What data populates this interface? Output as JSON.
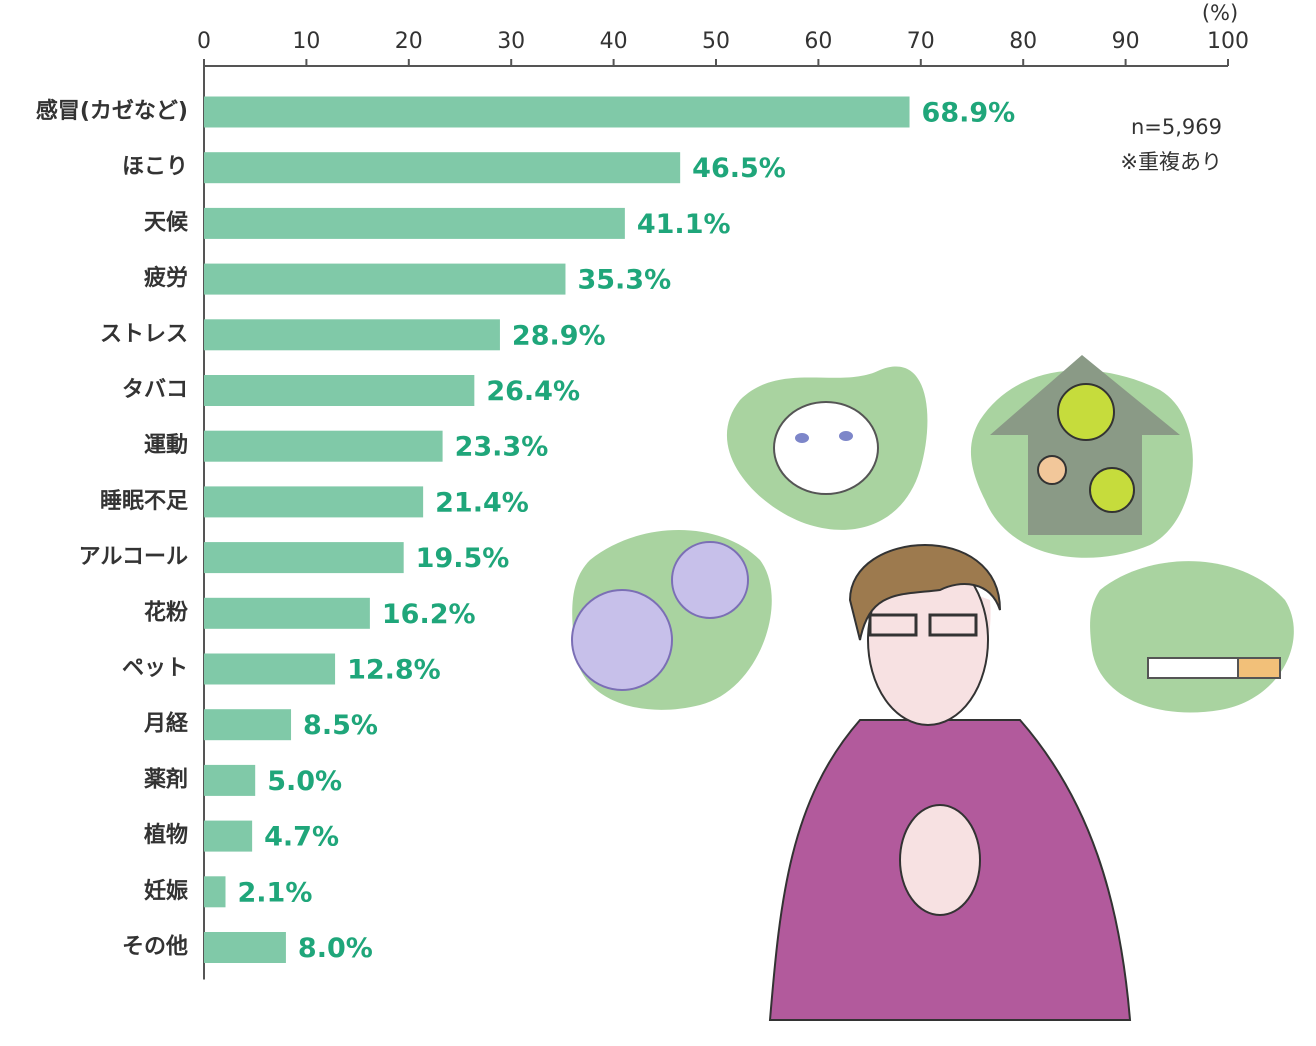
{
  "chart_data": {
    "type": "bar",
    "orientation": "horizontal",
    "unit_label": "(%)",
    "annotations": [
      "n=5,969",
      "※重複あり"
    ],
    "categories": [
      "感冒(カゼなど)",
      "ほこり",
      "天候",
      "疲労",
      "ストレス",
      "タバコ",
      "運動",
      "睡眠不足",
      "アルコール",
      "花粉",
      "ペット",
      "月経",
      "薬剤",
      "植物",
      "妊娠",
      "その他"
    ],
    "values": [
      68.9,
      46.5,
      41.1,
      35.3,
      28.9,
      26.4,
      23.3,
      21.4,
      19.5,
      16.2,
      12.8,
      8.5,
      5.0,
      4.7,
      2.1,
      8.0
    ],
    "value_labels": [
      "68.9%",
      "46.5%",
      "41.1%",
      "35.3%",
      "28.9%",
      "26.4%",
      "23.3%",
      "21.4%",
      "19.5%",
      "16.2%",
      "12.8%",
      "8.5%",
      "5.0%",
      "4.7%",
      "2.1%",
      "8.0%"
    ],
    "color": "#80c9a8",
    "xlim": [
      0,
      100
    ],
    "xticks": [
      0,
      10,
      20,
      30,
      40,
      50,
      60,
      70,
      80,
      90,
      100
    ]
  }
}
